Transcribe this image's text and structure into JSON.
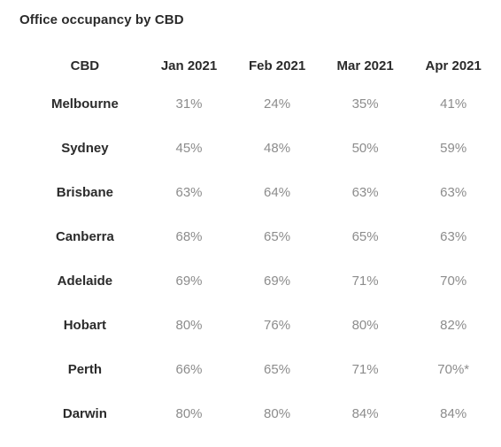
{
  "title": "Office occupancy by CBD",
  "chart_data": {
    "type": "table",
    "title": "Office occupancy by CBD",
    "columns": [
      "CBD",
      "Jan 2021",
      "Feb 2021",
      "Mar 2021",
      "Apr 2021"
    ],
    "rows": [
      {
        "cbd": "Melbourne",
        "values": [
          "31%",
          "24%",
          "35%",
          "41%"
        ]
      },
      {
        "cbd": "Sydney",
        "values": [
          "45%",
          "48%",
          "50%",
          "59%"
        ]
      },
      {
        "cbd": "Brisbane",
        "values": [
          "63%",
          "64%",
          "63%",
          "63%"
        ]
      },
      {
        "cbd": "Canberra",
        "values": [
          "68%",
          "65%",
          "65%",
          "63%"
        ]
      },
      {
        "cbd": "Adelaide",
        "values": [
          "69%",
          "69%",
          "71%",
          "70%"
        ]
      },
      {
        "cbd": "Hobart",
        "values": [
          "80%",
          "76%",
          "80%",
          "82%"
        ]
      },
      {
        "cbd": "Perth",
        "values": [
          "66%",
          "65%",
          "71%",
          "70%*"
        ]
      },
      {
        "cbd": "Darwin",
        "values": [
          "80%",
          "80%",
          "84%",
          "84%"
        ]
      }
    ]
  }
}
